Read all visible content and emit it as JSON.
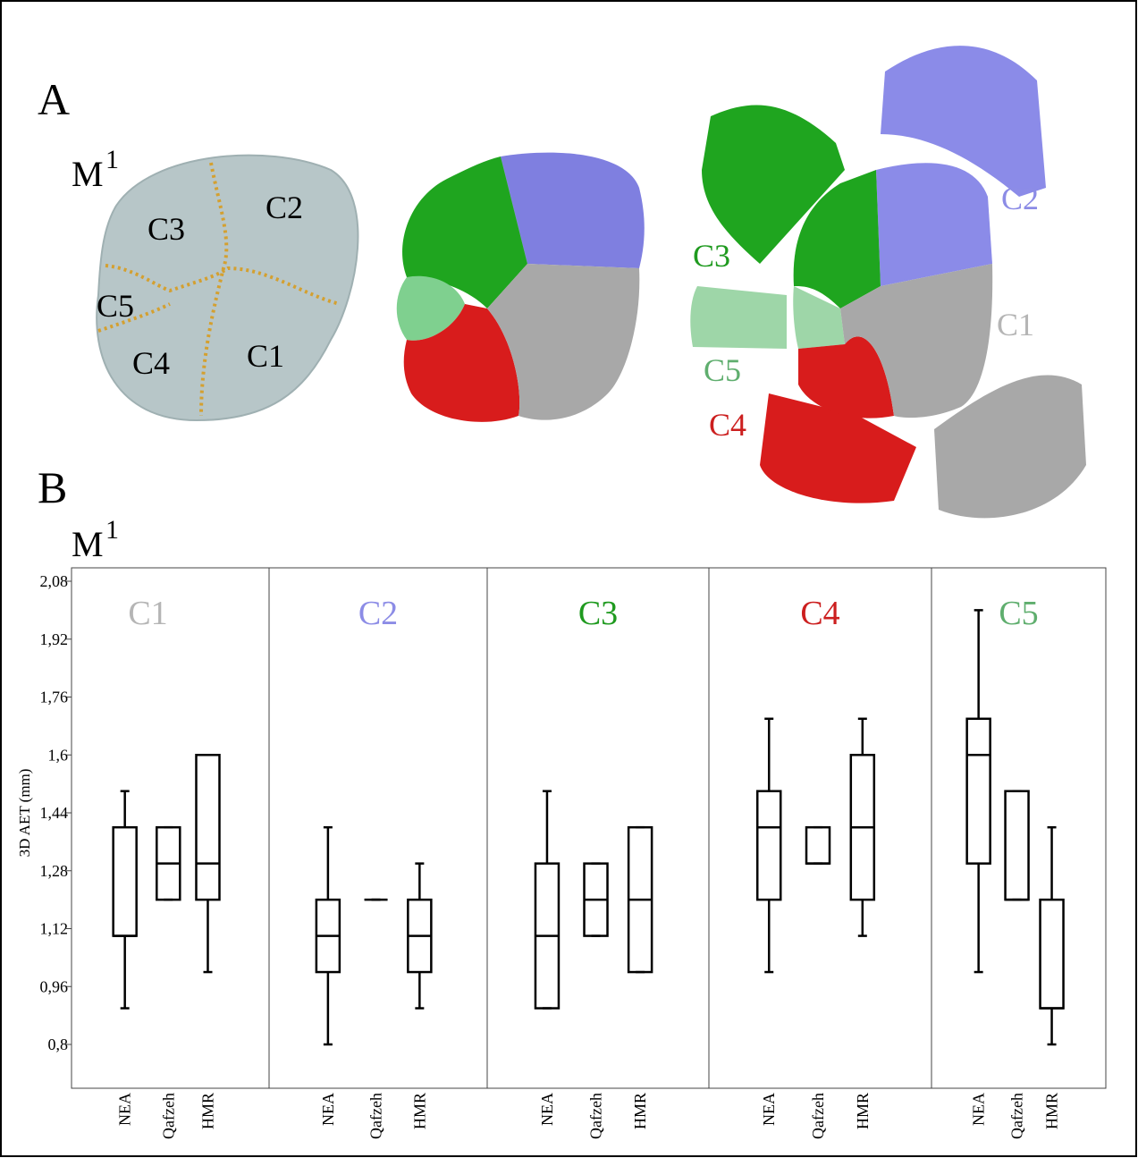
{
  "figure": {
    "panel_a": {
      "letter": "A",
      "tooth": "M",
      "tooth_index": "1",
      "outline_labels": [
        "C3",
        "C2",
        "C5",
        "C4",
        "C1"
      ],
      "exploded_labels": [
        {
          "text": "C2",
          "color": "#8c8ce6"
        },
        {
          "text": "C3",
          "color": "#1f9a1f"
        },
        {
          "text": "C1",
          "color": "#b5b5b5"
        },
        {
          "text": "C5",
          "color": "#5fae6e"
        },
        {
          "text": "C4",
          "color": "#cc1f1f"
        }
      ]
    },
    "panel_b": {
      "letter": "B",
      "tooth": "M",
      "tooth_index": "1"
    }
  },
  "chart_data": {
    "type": "box",
    "ylabel": "3D AET (mm)",
    "ylim": [
      0.8,
      2.08
    ],
    "yticks": [
      {
        "value": 0.8,
        "label": "0,8"
      },
      {
        "value": 0.96,
        "label": "0,96"
      },
      {
        "value": 1.12,
        "label": "1,12"
      },
      {
        "value": 1.28,
        "label": "1,28"
      },
      {
        "value": 1.44,
        "label": "1,44"
      },
      {
        "value": 1.6,
        "label": "1,6"
      },
      {
        "value": 1.76,
        "label": "1,76"
      },
      {
        "value": 1.92,
        "label": "1,92"
      },
      {
        "value": 2.08,
        "label": "2,08"
      }
    ],
    "categories": [
      "NEA",
      "Qafzeh",
      "HMR"
    ],
    "panels": [
      {
        "title": "C1",
        "color": "#b5b5b5",
        "boxes": [
          {
            "min": 0.9,
            "q1": 1.1,
            "median": 1.1,
            "q3": 1.4,
            "max": 1.5
          },
          {
            "min": 1.2,
            "q1": 1.2,
            "median": 1.3,
            "q3": 1.4,
            "max": 1.4
          },
          {
            "min": 1.0,
            "q1": 1.2,
            "median": 1.3,
            "q3": 1.6,
            "max": 1.6
          }
        ]
      },
      {
        "title": "C2",
        "color": "#8c8ce6",
        "boxes": [
          {
            "min": 0.8,
            "q1": 1.0,
            "median": 1.1,
            "q3": 1.2,
            "max": 1.4
          },
          {
            "min": 1.2,
            "q1": 1.2,
            "median": 1.2,
            "q3": 1.2,
            "max": 1.2
          },
          {
            "min": 0.9,
            "q1": 1.0,
            "median": 1.1,
            "q3": 1.2,
            "max": 1.3
          }
        ]
      },
      {
        "title": "C3",
        "color": "#1f9a1f",
        "boxes": [
          {
            "min": 0.9,
            "q1": 0.9,
            "median": 1.1,
            "q3": 1.3,
            "max": 1.5
          },
          {
            "min": 1.1,
            "q1": 1.1,
            "median": 1.2,
            "q3": 1.3,
            "max": 1.3
          },
          {
            "min": 1.0,
            "q1": 1.0,
            "median": 1.2,
            "q3": 1.4,
            "max": 1.4
          }
        ]
      },
      {
        "title": "C4",
        "color": "#cc1f1f",
        "boxes": [
          {
            "min": 1.0,
            "q1": 1.2,
            "median": 1.4,
            "q3": 1.5,
            "max": 1.7
          },
          {
            "min": 1.3,
            "q1": 1.3,
            "median": 1.3,
            "q3": 1.4,
            "max": 1.4
          },
          {
            "min": 1.1,
            "q1": 1.2,
            "median": 1.4,
            "q3": 1.6,
            "max": 1.7
          }
        ]
      },
      {
        "title": "C5",
        "color": "#5fae6e",
        "boxes": [
          {
            "min": 1.0,
            "q1": 1.3,
            "median": 1.6,
            "q3": 1.7,
            "max": 2.0
          },
          {
            "min": 1.2,
            "q1": 1.2,
            "median": 1.2,
            "q3": 1.5,
            "max": 1.5
          },
          {
            "min": 0.8,
            "q1": 0.9,
            "median": 0.9,
            "q3": 1.2,
            "max": 1.4
          }
        ]
      }
    ]
  }
}
